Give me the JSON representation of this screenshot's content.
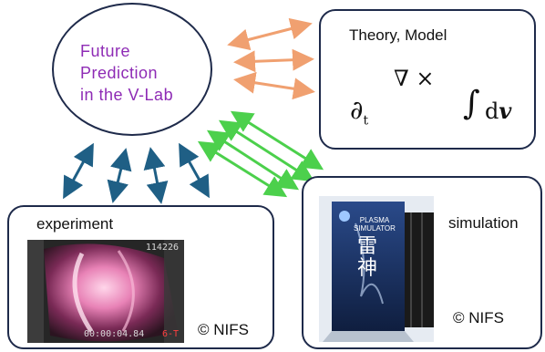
{
  "center": {
    "lines": [
      "Future",
      "Prediction",
      "in the V-Lab"
    ]
  },
  "theory": {
    "title": "Theory, Model",
    "partial": "∂",
    "sub": "t",
    "nabla": "∇ ×",
    "integral": "∫",
    "d": "d",
    "v": "v"
  },
  "experiment": {
    "title": "experiment",
    "timestamp": "114226",
    "time": "00:00:04.84",
    "tag": "6-T",
    "credit": "© NIFS"
  },
  "simulation": {
    "title": "simulation",
    "machine_text": [
      "PLASMA",
      "SIMULATOR"
    ],
    "machine_kanji": "雷神",
    "credit": "© NIFS"
  },
  "colors": {
    "oval_text": "#8e2bb5",
    "arrow_theory": "#f0a070",
    "arrow_sim": "#4cd04c",
    "arrow_exp": "#1f5f85",
    "border": "#1e2a4a"
  }
}
